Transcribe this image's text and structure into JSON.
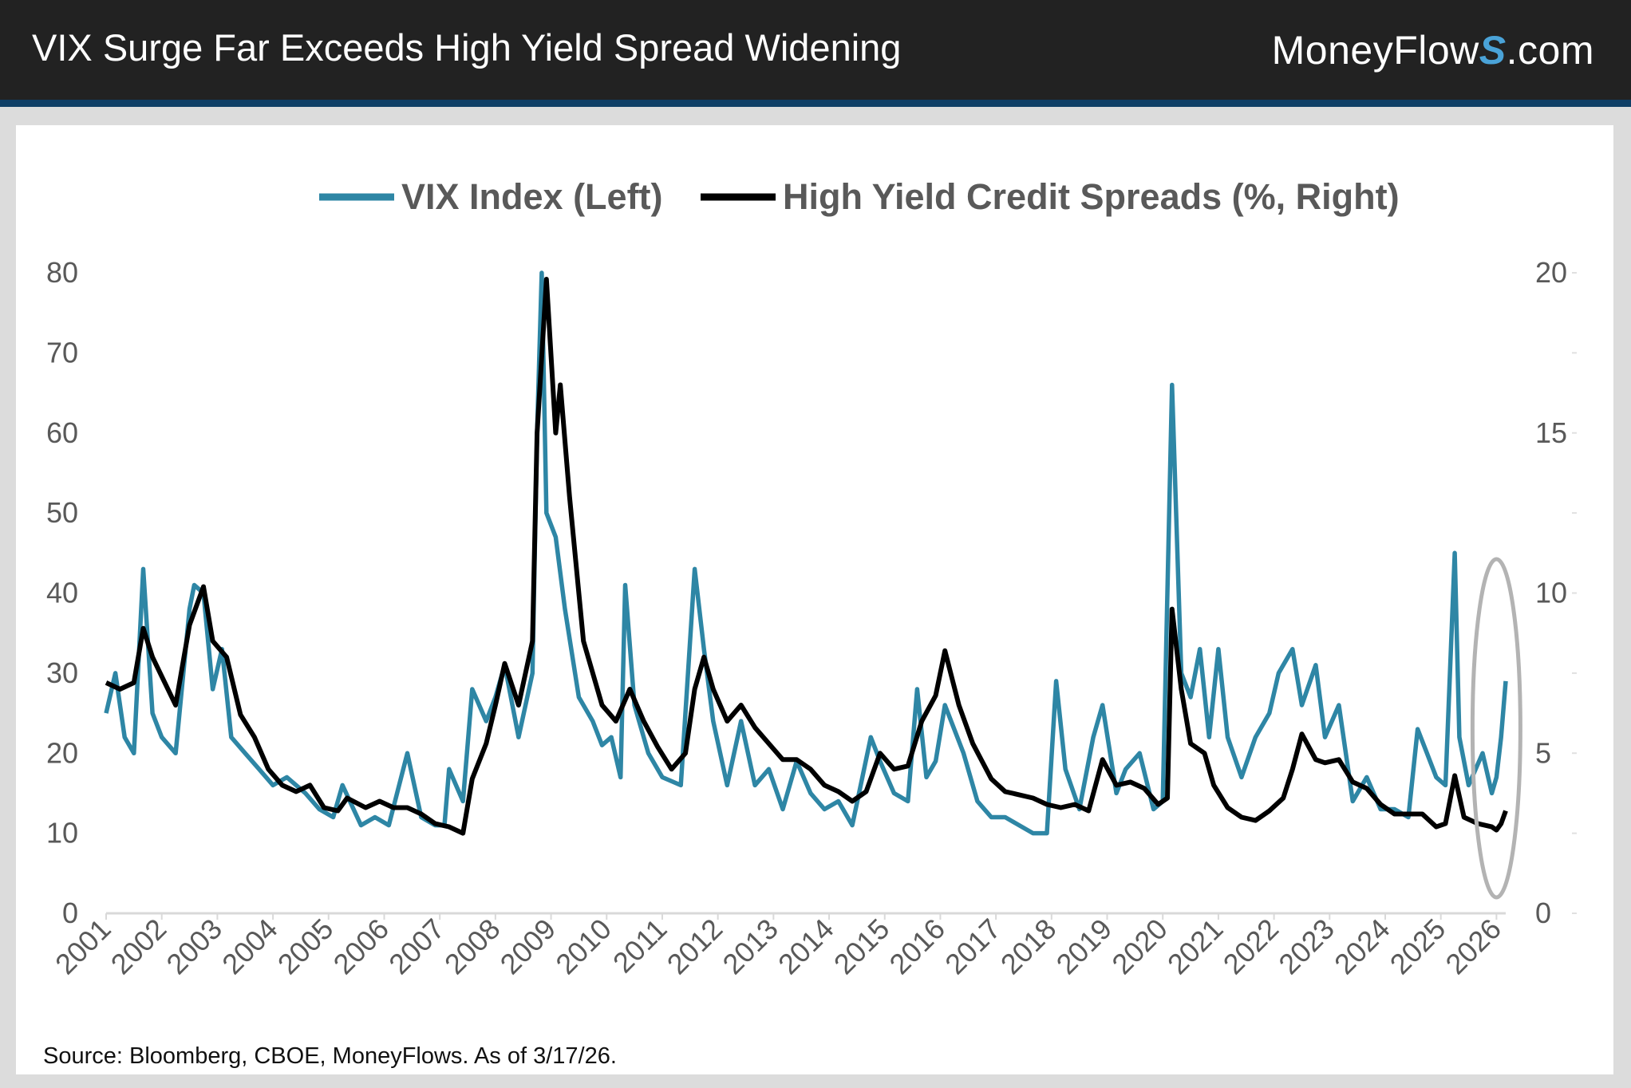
{
  "header": {
    "title": "VIX Surge Far Exceeds High Yield Spread Widening",
    "logo": "MoneyFlows.com",
    "logo_parts": [
      "MoneyFlow",
      "S",
      ".com"
    ]
  },
  "source": "Source: Bloomberg, CBOE, MoneyFlows. As of  3/17/26.",
  "chart_data": {
    "type": "line",
    "title": "",
    "legend_position": "top-center",
    "grid": false,
    "x_ticks": [
      "2001",
      "2002",
      "2003",
      "2004",
      "2005",
      "2006",
      "2007",
      "2008",
      "2009",
      "2010",
      "2011",
      "2012",
      "2013",
      "2014",
      "2015",
      "2016",
      "2017",
      "2018",
      "2019",
      "2020",
      "2021",
      "2022",
      "2023",
      "2024",
      "2025",
      "2026"
    ],
    "xlim": [
      "2001-01",
      "2026-03"
    ],
    "y_left": {
      "ticks": [
        "0",
        "10",
        "20",
        "30",
        "40",
        "50",
        "60",
        "70",
        "80"
      ],
      "range": [
        0,
        80
      ]
    },
    "y_right": {
      "ticks": [
        "0",
        "5",
        "10",
        "15",
        "20"
      ],
      "range": [
        0,
        20
      ]
    },
    "annotation": {
      "type": "ellipse",
      "around": [
        "2025-11",
        "2026-03"
      ],
      "color": "#b3b3b3"
    },
    "series": [
      {
        "name": "VIX Index (Left)",
        "axis": "left",
        "color": "#2e86a5",
        "points": [
          [
            "2001-01",
            25
          ],
          [
            "2001-03",
            30
          ],
          [
            "2001-05",
            22
          ],
          [
            "2001-07",
            20
          ],
          [
            "2001-09",
            43
          ],
          [
            "2001-11",
            25
          ],
          [
            "2002-01",
            22
          ],
          [
            "2002-04",
            20
          ],
          [
            "2002-07",
            38
          ],
          [
            "2002-08",
            41
          ],
          [
            "2002-10",
            40
          ],
          [
            "2002-12",
            28
          ],
          [
            "2003-02",
            33
          ],
          [
            "2003-04",
            22
          ],
          [
            "2003-07",
            20
          ],
          [
            "2003-10",
            18
          ],
          [
            "2004-01",
            16
          ],
          [
            "2004-04",
            17
          ],
          [
            "2004-08",
            15
          ],
          [
            "2004-11",
            13
          ],
          [
            "2005-02",
            12
          ],
          [
            "2005-04",
            16
          ],
          [
            "2005-08",
            11
          ],
          [
            "2005-11",
            12
          ],
          [
            "2006-02",
            11
          ],
          [
            "2006-06",
            20
          ],
          [
            "2006-09",
            12
          ],
          [
            "2006-12",
            11
          ],
          [
            "2007-02",
            11
          ],
          [
            "2007-03",
            18
          ],
          [
            "2007-06",
            14
          ],
          [
            "2007-08",
            28
          ],
          [
            "2007-11",
            24
          ],
          [
            "2008-01",
            27
          ],
          [
            "2008-03",
            31
          ],
          [
            "2008-06",
            22
          ],
          [
            "2008-09",
            30
          ],
          [
            "2008-10",
            60
          ],
          [
            "2008-11",
            80
          ],
          [
            "2008-12",
            50
          ],
          [
            "2009-02",
            47
          ],
          [
            "2009-04",
            38
          ],
          [
            "2009-07",
            27
          ],
          [
            "2009-10",
            24
          ],
          [
            "2009-12",
            21
          ],
          [
            "2010-02",
            22
          ],
          [
            "2010-04",
            17
          ],
          [
            "2010-05",
            41
          ],
          [
            "2010-07",
            26
          ],
          [
            "2010-10",
            20
          ],
          [
            "2011-01",
            17
          ],
          [
            "2011-05",
            16
          ],
          [
            "2011-08",
            43
          ],
          [
            "2011-10",
            33
          ],
          [
            "2011-12",
            24
          ],
          [
            "2012-03",
            16
          ],
          [
            "2012-06",
            24
          ],
          [
            "2012-09",
            16
          ],
          [
            "2012-12",
            18
          ],
          [
            "2013-03",
            13
          ],
          [
            "2013-06",
            19
          ],
          [
            "2013-09",
            15
          ],
          [
            "2013-12",
            13
          ],
          [
            "2014-03",
            14
          ],
          [
            "2014-06",
            11
          ],
          [
            "2014-10",
            22
          ],
          [
            "2014-12",
            19
          ],
          [
            "2015-03",
            15
          ],
          [
            "2015-06",
            14
          ],
          [
            "2015-08",
            28
          ],
          [
            "2015-10",
            17
          ],
          [
            "2015-12",
            19
          ],
          [
            "2016-02",
            26
          ],
          [
            "2016-06",
            20
          ],
          [
            "2016-09",
            14
          ],
          [
            "2016-12",
            12
          ],
          [
            "2017-03",
            12
          ],
          [
            "2017-06",
            11
          ],
          [
            "2017-09",
            10
          ],
          [
            "2017-12",
            10
          ],
          [
            "2018-02",
            29
          ],
          [
            "2018-04",
            18
          ],
          [
            "2018-07",
            13
          ],
          [
            "2018-10",
            22
          ],
          [
            "2018-12",
            26
          ],
          [
            "2019-03",
            15
          ],
          [
            "2019-05",
            18
          ],
          [
            "2019-08",
            20
          ],
          [
            "2019-11",
            13
          ],
          [
            "2020-01",
            14
          ],
          [
            "2020-02",
            40
          ],
          [
            "2020-03",
            66
          ],
          [
            "2020-05",
            30
          ],
          [
            "2020-07",
            27
          ],
          [
            "2020-09",
            33
          ],
          [
            "2020-11",
            22
          ],
          [
            "2021-01",
            33
          ],
          [
            "2021-03",
            22
          ],
          [
            "2021-06",
            17
          ],
          [
            "2021-09",
            22
          ],
          [
            "2021-12",
            25
          ],
          [
            "2022-02",
            30
          ],
          [
            "2022-05",
            33
          ],
          [
            "2022-07",
            26
          ],
          [
            "2022-10",
            31
          ],
          [
            "2022-12",
            22
          ],
          [
            "2023-03",
            26
          ],
          [
            "2023-06",
            14
          ],
          [
            "2023-09",
            17
          ],
          [
            "2023-12",
            13
          ],
          [
            "2024-03",
            13
          ],
          [
            "2024-06",
            12
          ],
          [
            "2024-08",
            23
          ],
          [
            "2024-10",
            20
          ],
          [
            "2024-12",
            17
          ],
          [
            "2025-02",
            16
          ],
          [
            "2025-04",
            45
          ],
          [
            "2025-05",
            22
          ],
          [
            "2025-07",
            16
          ],
          [
            "2025-10",
            20
          ],
          [
            "2025-12",
            15
          ],
          [
            "2026-01",
            17
          ],
          [
            "2026-02",
            22
          ],
          [
            "2026-03",
            29
          ]
        ]
      },
      {
        "name": "High Yield Credit Spreads (%, Right)",
        "axis": "right",
        "color": "#000000",
        "points": [
          [
            "2001-01",
            7.2
          ],
          [
            "2001-04",
            7.0
          ],
          [
            "2001-07",
            7.2
          ],
          [
            "2001-09",
            8.9
          ],
          [
            "2001-11",
            8.0
          ],
          [
            "2002-01",
            7.4
          ],
          [
            "2002-04",
            6.5
          ],
          [
            "2002-07",
            9.0
          ],
          [
            "2002-10",
            10.2
          ],
          [
            "2002-12",
            8.5
          ],
          [
            "2003-03",
            8.0
          ],
          [
            "2003-06",
            6.2
          ],
          [
            "2003-09",
            5.5
          ],
          [
            "2003-12",
            4.5
          ],
          [
            "2004-03",
            4.0
          ],
          [
            "2004-06",
            3.8
          ],
          [
            "2004-09",
            4.0
          ],
          [
            "2004-12",
            3.3
          ],
          [
            "2005-03",
            3.2
          ],
          [
            "2005-05",
            3.6
          ],
          [
            "2005-09",
            3.3
          ],
          [
            "2005-12",
            3.5
          ],
          [
            "2006-03",
            3.3
          ],
          [
            "2006-06",
            3.3
          ],
          [
            "2006-09",
            3.1
          ],
          [
            "2006-12",
            2.8
          ],
          [
            "2007-03",
            2.7
          ],
          [
            "2007-06",
            2.5
          ],
          [
            "2007-08",
            4.2
          ],
          [
            "2007-11",
            5.3
          ],
          [
            "2008-01",
            6.5
          ],
          [
            "2008-03",
            7.8
          ],
          [
            "2008-06",
            6.5
          ],
          [
            "2008-09",
            8.5
          ],
          [
            "2008-10",
            15
          ],
          [
            "2008-12",
            19.8
          ],
          [
            "2009-02",
            15
          ],
          [
            "2009-03",
            16.5
          ],
          [
            "2009-05",
            13
          ],
          [
            "2009-08",
            8.5
          ],
          [
            "2009-12",
            6.5
          ],
          [
            "2010-03",
            6.0
          ],
          [
            "2010-06",
            7.0
          ],
          [
            "2010-09",
            6.0
          ],
          [
            "2010-12",
            5.2
          ],
          [
            "2011-03",
            4.5
          ],
          [
            "2011-06",
            5.0
          ],
          [
            "2011-08",
            7.0
          ],
          [
            "2011-10",
            8.0
          ],
          [
            "2011-12",
            7.0
          ],
          [
            "2012-03",
            6.0
          ],
          [
            "2012-06",
            6.5
          ],
          [
            "2012-09",
            5.8
          ],
          [
            "2012-12",
            5.3
          ],
          [
            "2013-03",
            4.8
          ],
          [
            "2013-06",
            4.8
          ],
          [
            "2013-09",
            4.5
          ],
          [
            "2013-12",
            4.0
          ],
          [
            "2014-03",
            3.8
          ],
          [
            "2014-06",
            3.5
          ],
          [
            "2014-09",
            3.8
          ],
          [
            "2014-12",
            5.0
          ],
          [
            "2015-03",
            4.5
          ],
          [
            "2015-06",
            4.6
          ],
          [
            "2015-09",
            6.0
          ],
          [
            "2015-12",
            6.8
          ],
          [
            "2016-02",
            8.2
          ],
          [
            "2016-05",
            6.5
          ],
          [
            "2016-08",
            5.3
          ],
          [
            "2016-12",
            4.2
          ],
          [
            "2017-03",
            3.8
          ],
          [
            "2017-06",
            3.7
          ],
          [
            "2017-09",
            3.6
          ],
          [
            "2017-12",
            3.4
          ],
          [
            "2018-03",
            3.3
          ],
          [
            "2018-06",
            3.4
          ],
          [
            "2018-09",
            3.2
          ],
          [
            "2018-12",
            4.8
          ],
          [
            "2019-03",
            4.0
          ],
          [
            "2019-06",
            4.1
          ],
          [
            "2019-09",
            3.9
          ],
          [
            "2019-12",
            3.4
          ],
          [
            "2020-02",
            3.6
          ],
          [
            "2020-03",
            9.5
          ],
          [
            "2020-05",
            7.0
          ],
          [
            "2020-07",
            5.3
          ],
          [
            "2020-10",
            5.0
          ],
          [
            "2020-12",
            4.0
          ],
          [
            "2021-03",
            3.3
          ],
          [
            "2021-06",
            3.0
          ],
          [
            "2021-09",
            2.9
          ],
          [
            "2021-12",
            3.2
          ],
          [
            "2022-03",
            3.6
          ],
          [
            "2022-05",
            4.5
          ],
          [
            "2022-07",
            5.6
          ],
          [
            "2022-10",
            4.8
          ],
          [
            "2022-12",
            4.7
          ],
          [
            "2023-03",
            4.8
          ],
          [
            "2023-06",
            4.1
          ],
          [
            "2023-09",
            3.9
          ],
          [
            "2023-12",
            3.4
          ],
          [
            "2024-03",
            3.1
          ],
          [
            "2024-06",
            3.1
          ],
          [
            "2024-09",
            3.1
          ],
          [
            "2024-12",
            2.7
          ],
          [
            "2025-02",
            2.8
          ],
          [
            "2025-04",
            4.3
          ],
          [
            "2025-06",
            3.0
          ],
          [
            "2025-09",
            2.8
          ],
          [
            "2025-12",
            2.7
          ],
          [
            "2026-01",
            2.6
          ],
          [
            "2026-02",
            2.8
          ],
          [
            "2026-03",
            3.2
          ]
        ]
      }
    ]
  }
}
